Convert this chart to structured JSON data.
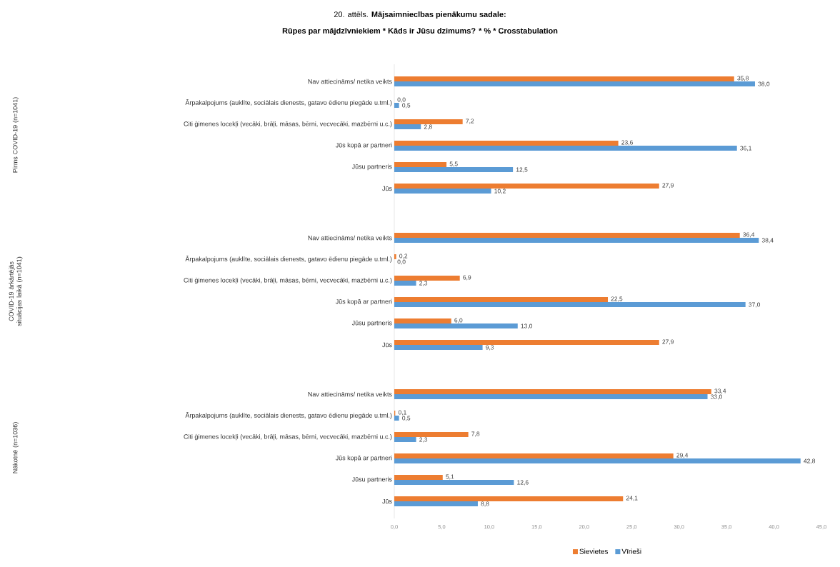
{
  "chart_data": {
    "type": "bar",
    "orientation": "horizontal",
    "title": "20. attēls. **Mājsaimniecības pienākumu sadale:**",
    "subtitle": "Rūpes par mājdzīvniekiem * Kāds ir Jūsu dzimums? * % * Crosstabulation",
    "categories": [
      "Nav attiecināms/ netika veikts",
      "Ārpakalpojums (auklīte, sociālais dienests, gatavo ēdienu piegāde u.tml.)",
      "Citi ģimenes locekļi (vecāki, brāļi, māsas, bērni, vecvecāki, mazbērni u.c.)",
      "Jūs kopā ar partneri",
      "Jūsu partneris",
      "Jūs",
      "Nav attiecināms/ netika veikts",
      "Ārpakalpojums (auklīte, sociālais dienests, gatavo ēdienu piegāde u.tml.)",
      "Citi ģimenes locekļi (vecāki, brāļi, māsas, bērni, vecvecāki, mazbērni u.c.)",
      "Jūs kopā ar partneri",
      "Jūsu partneris",
      "Jūs",
      "Nav attiecināms/ netika veikts",
      "Ārpakalpojums (auklīte, sociālais dienests, gatavo ēdienu piegāde u.tml.)",
      "Citi ģimenes locekļi (vecāki, brāļi, māsas, bērni, vecvecāki, mazbērni u.c.)",
      "Jūs kopā ar partneri",
      "Jūsu partneris",
      "Jūs"
    ],
    "annotations": [
      "Pirms COVID-19 (n=1041)",
      "COVID-19 ārkārtējās situācijas laikā (n=1041)",
      "Nākotnē (n=1036)"
    ],
    "series": [
      {
        "name": "Sievietes",
        "color": "#ed7d31",
        "values": [
          35.8,
          0.0,
          7.2,
          23.6,
          5.5,
          27.9,
          36.4,
          0.2,
          6.9,
          22.5,
          6.0,
          27.9,
          33.4,
          0.1,
          7.8,
          29.4,
          5.1,
          24.1
        ],
        "value_labels": [
          "35,8",
          "0,0",
          "7,2",
          "23,6",
          "5,5",
          "27,9",
          "36,4",
          "0,2",
          "6,9",
          "22,5",
          "6,0",
          "27,9",
          "33,4",
          "0,1",
          "7,8",
          "29,4",
          "5,1",
          "24,1"
        ]
      },
      {
        "name": "Vīrieši",
        "color": "#5b9bd5",
        "values": [
          38.0,
          0.5,
          2.8,
          36.1,
          12.5,
          10.2,
          38.4,
          0.0,
          2.3,
          37.0,
          13.0,
          9.3,
          33.0,
          0.5,
          2.3,
          42.8,
          12.6,
          8.8
        ],
        "value_labels": [
          "38,0",
          "0,5",
          "2,8",
          "36,1",
          "12,5",
          "10,2",
          "38,4",
          "0,0",
          "2,3",
          "37,0",
          "13,0",
          "9,3",
          "33,0",
          "0,5",
          "2,3",
          "42,8",
          "12,6",
          "8,8"
        ]
      }
    ],
    "xlim": [
      0,
      45
    ],
    "xticks": [
      {
        "value": 0,
        "label": "0,0"
      },
      {
        "value": 5,
        "label": "5,0"
      },
      {
        "value": 10,
        "label": "10,0"
      },
      {
        "value": 15,
        "label": "15,0"
      },
      {
        "value": 20,
        "label": "20,0"
      },
      {
        "value": 25,
        "label": "25,0"
      },
      {
        "value": 30,
        "label": "30,0"
      },
      {
        "value": 35,
        "label": "35,0"
      },
      {
        "value": 40,
        "label": "40,0"
      },
      {
        "value": 45,
        "label": "45,0"
      }
    ],
    "legend": "bottom"
  }
}
